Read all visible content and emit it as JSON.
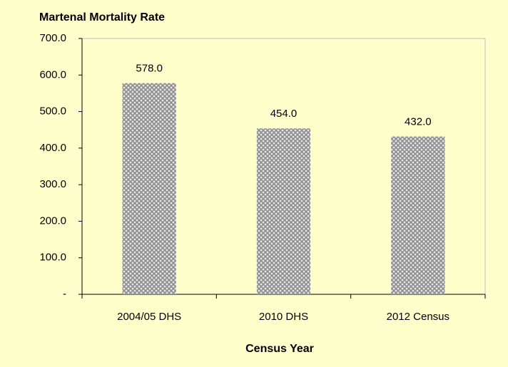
{
  "chart_data": {
    "type": "bar",
    "title": "Martenal Mortality Rate",
    "x_label": "Census Year",
    "categories": [
      "2004/05 DHS",
      "2010 DHS",
      "2012 Census"
    ],
    "values": [
      578,
      454,
      432
    ],
    "value_labels": [
      "578.0",
      "454.0",
      "432.0"
    ],
    "color": "#8c8c8c",
    "ylim": [
      0,
      700
    ],
    "yticks": [
      {
        "value": 0,
        "label": "-"
      },
      {
        "value": 100,
        "label": "100.0"
      },
      {
        "value": 200,
        "label": "200.0"
      },
      {
        "value": 300,
        "label": "300.0"
      },
      {
        "value": 400,
        "label": "400.0"
      },
      {
        "value": 500,
        "label": "500.0"
      },
      {
        "value": 600,
        "label": "600.0"
      },
      {
        "value": 700,
        "label": "700.0"
      }
    ],
    "grid": false
  }
}
